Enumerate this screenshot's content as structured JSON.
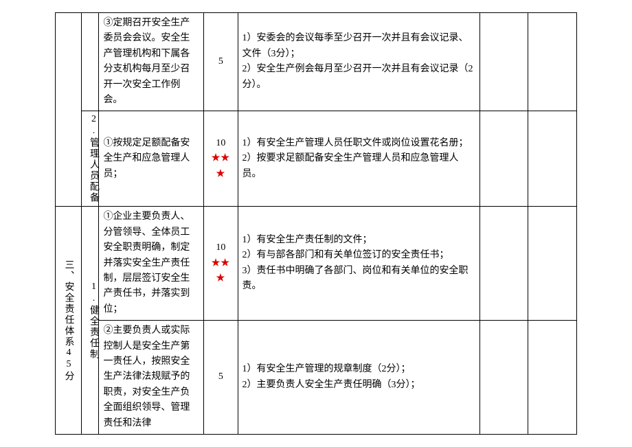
{
  "table": {
    "border_color": "#000000",
    "background_color": "#ffffff",
    "font_size": 14,
    "star_color": "#dd0000",
    "rows": [
      {
        "col1": "",
        "col2": "",
        "col3": "③定期召开安全生产委员会会议。安全生产管理机构和下属各分支机构每月至少召开一次安全工作例会。",
        "score": "5",
        "stars": "",
        "col5": "1）安委会的会议每季至少召开一次并且有会议记录、文件（3分）；\n2）安全生产例会每月至少召开一次并且有会议记录（2分）。",
        "col6": "",
        "col7": ""
      },
      {
        "col2": "2.管理人员配备",
        "col3": "①按规定足额配备安全生产和应急管理人员；",
        "score": "10",
        "stars": "★★★",
        "col5": "1）有安全生产管理人员任职文件或岗位设置花名册；\n2）按要求足额配备安全生产管理人员和应急管理人员。",
        "col6": "",
        "col7": ""
      },
      {
        "col1": "三、安全责任体系45分",
        "col2": "1.健全责任制",
        "col3": "①企业主要负责人、分管领导、全体员工安全职责明确，制定并落实安全生产责任制，层层签订安全生产责任书，并落实到位；",
        "score": "10",
        "stars": "★★★",
        "col5": "1）有安全生产责任制的文件；\n2）有与部各部门和有关单位签订的安全责任书；\n3）责任书中明确了各部门、岗位和有关单位的安全职责。",
        "col6": "",
        "col7": ""
      },
      {
        "col3": "②主要负责人或实际控制人是安全生产第一责任人，按照安全生产法律法规赋予的职责，对安全生产负全面组织领导、管理责任和法律",
        "score": "5",
        "stars": "",
        "col5": "1）有安全生产管理的规章制度（2分）；\n2）主要负责人安全生产责任明确（3分）；",
        "col6": "",
        "col7": ""
      }
    ]
  }
}
